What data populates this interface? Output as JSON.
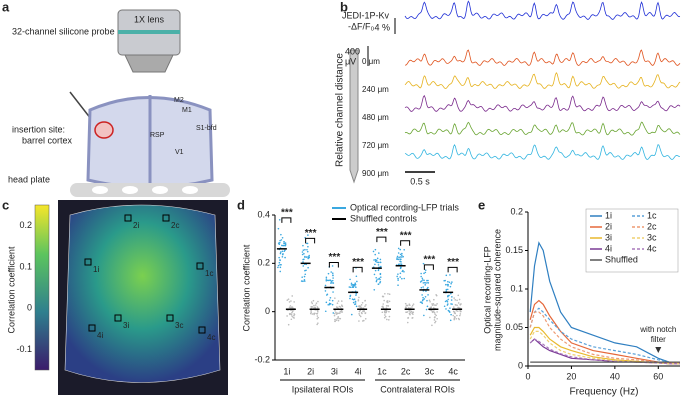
{
  "panels": {
    "a": {
      "label": "a",
      "lens": "1X lens",
      "probe": "32-channel silicone probe",
      "site": [
        "insertion site:",
        "barrel cortex"
      ],
      "plate": "head plate",
      "areas": [
        "M2",
        "M1",
        "RSP",
        "S1-bfd",
        "V1"
      ]
    },
    "b": {
      "label": "b",
      "indicator": [
        "JEDI-1P-Kv",
        "-ΔF/F₀"
      ],
      "scale_optical": "4 %",
      "scale_lfp": [
        "400",
        "μV"
      ],
      "axis": "Relative channel distance",
      "depths": [
        "0 μm",
        "240 μm",
        "480 μm",
        "720 μm",
        "900 μm"
      ],
      "time_scale": "0.5 s",
      "trace_colors": [
        "#1f2fd6",
        "#e0541f",
        "#e6b21e",
        "#7a2a8c",
        "#6aa533",
        "#33b5e0"
      ]
    },
    "c": {
      "label": "c",
      "colorbar_label": "Correlation coefficient",
      "colorbar": {
        "lim": [
          -0.15,
          0.25
        ],
        "ticks": [
          0.2,
          0.1,
          0,
          -0.1
        ]
      },
      "rois": [
        "2i",
        "2c",
        "1i",
        "1c",
        "3i",
        "3c",
        "4i",
        "4c"
      ]
    }
  },
  "chart_data": [
    {
      "type": "scatter",
      "label": "d",
      "ylabel": "Correlation coefficient",
      "categories": [
        "1i",
        "2i",
        "3i",
        "4i",
        "1c",
        "2c",
        "3c",
        "4c"
      ],
      "series": [
        {
          "name": "Optical recording-LFP trials",
          "color": "#3aa8e0",
          "values": [
            0.26,
            0.2,
            0.1,
            0.08,
            0.18,
            0.19,
            0.09,
            0.08
          ]
        },
        {
          "name": "Shuffled controls",
          "color": "#000000",
          "values": [
            0.01,
            0.01,
            0.01,
            0.01,
            0.01,
            0.01,
            0.01,
            0.01
          ]
        }
      ],
      "significance": [
        "***",
        "***",
        "***",
        "***",
        "***",
        "***",
        "***",
        "***"
      ],
      "groups": [
        "Ipsilateral ROIs",
        "Contralateral ROIs"
      ],
      "ylim": [
        -0.2,
        0.4
      ],
      "yticks": [
        -0.2,
        0,
        0.2,
        0.4
      ]
    },
    {
      "type": "line",
      "label": "e",
      "ylabel": [
        "Optical recording-LFP",
        "magnitude-squared coherence"
      ],
      "xlabel": "Frequency (Hz)",
      "annotation": [
        "with notch",
        "filter"
      ],
      "x": [
        1,
        3,
        5,
        7,
        10,
        15,
        20,
        30,
        40,
        50,
        60,
        65,
        70
      ],
      "series": [
        {
          "name": "1i",
          "color": "#2f7fc1",
          "dash": false,
          "values": [
            0.07,
            0.13,
            0.16,
            0.15,
            0.11,
            0.07,
            0.05,
            0.04,
            0.03,
            0.025,
            0.01,
            0.005,
            0.005
          ]
        },
        {
          "name": "2i",
          "color": "#e5683a",
          "dash": false,
          "values": [
            0.06,
            0.08,
            0.085,
            0.08,
            0.065,
            0.045,
            0.03,
            0.02,
            0.015,
            0.01,
            0.005,
            0.004,
            0.004
          ]
        },
        {
          "name": "3i",
          "color": "#e8b92e",
          "dash": false,
          "values": [
            0.04,
            0.05,
            0.05,
            0.045,
            0.035,
            0.025,
            0.02,
            0.012,
            0.008,
            0.006,
            0.004,
            0.003,
            0.003
          ]
        },
        {
          "name": "4i",
          "color": "#7b3a96",
          "dash": false,
          "values": [
            0.03,
            0.035,
            0.03,
            0.025,
            0.02,
            0.015,
            0.01,
            0.008,
            0.006,
            0.005,
            0.004,
            0.003,
            0.003
          ]
        },
        {
          "name": "1c",
          "color": "#5aa0d8",
          "dash": true,
          "values": [
            0.05,
            0.07,
            0.075,
            0.07,
            0.06,
            0.045,
            0.035,
            0.025,
            0.02,
            0.015,
            0.008,
            0.005,
            0.005
          ]
        },
        {
          "name": "2c",
          "color": "#ee9a72",
          "dash": true,
          "values": [
            0.05,
            0.07,
            0.07,
            0.065,
            0.05,
            0.035,
            0.025,
            0.015,
            0.01,
            0.008,
            0.005,
            0.004,
            0.004
          ]
        },
        {
          "name": "3c",
          "color": "#efd070",
          "dash": true,
          "values": [
            0.035,
            0.045,
            0.045,
            0.04,
            0.03,
            0.02,
            0.015,
            0.01,
            0.007,
            0.005,
            0.004,
            0.003,
            0.003
          ]
        },
        {
          "name": "4c",
          "color": "#a878bb",
          "dash": true,
          "values": [
            0.03,
            0.035,
            0.032,
            0.028,
            0.022,
            0.016,
            0.012,
            0.008,
            0.006,
            0.005,
            0.004,
            0.003,
            0.003
          ]
        },
        {
          "name": "Shuffled",
          "color": "#555555",
          "dash": false,
          "values": [
            0.005,
            0.005,
            0.005,
            0.005,
            0.005,
            0.005,
            0.005,
            0.005,
            0.005,
            0.005,
            0.005,
            0.005,
            0.005
          ]
        }
      ],
      "xlim": [
        0,
        70
      ],
      "xticks": [
        0,
        20,
        40,
        60
      ],
      "ylim": [
        0,
        0.2
      ],
      "yticks": [
        0,
        0.05,
        0.1,
        0.15,
        0.2
      ]
    }
  ]
}
